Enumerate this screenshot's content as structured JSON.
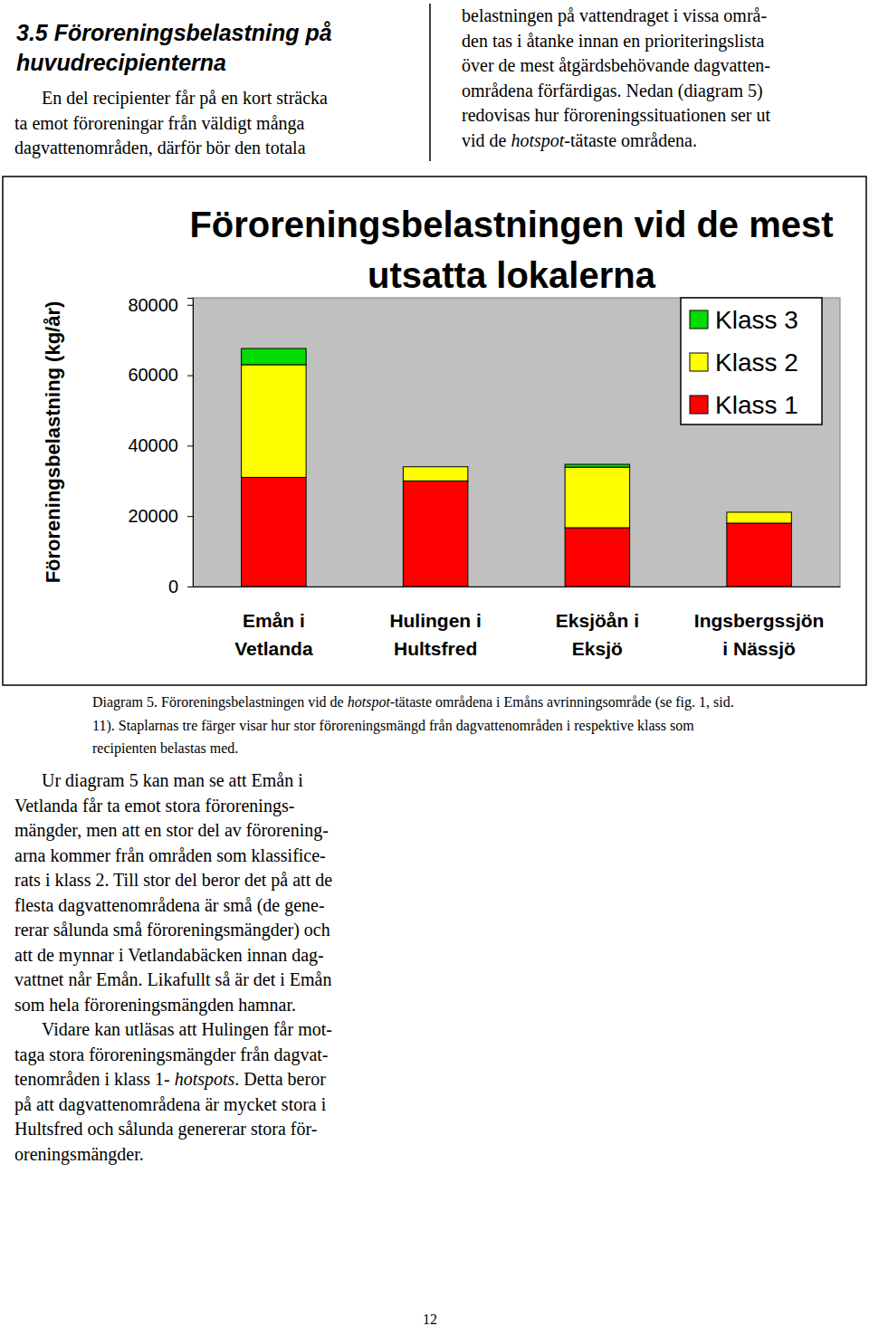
{
  "heading": [
    "3.5 Föroreningsbelastning på",
    "huvudrecipienterna"
  ],
  "intro": {
    "left": [
      "En del recipienter får på en kort sträcka",
      "ta emot föroreningar från väldigt många",
      "dagvattenområden, därför bör den totala"
    ],
    "right": [
      "belastningen på vattendraget i vissa områ-",
      "den tas i åtanke innan en prioriteringslista",
      "över de mest åtgärdsbehövande dagvatten-",
      "områdena förfärdigas. Nedan (diagram 5)",
      "redovisas hur föroreningssituationen ser ut",
      [
        "vid de ",
        "hotspot",
        "-tätaste områdena."
      ]
    ]
  },
  "chart_data": {
    "type": "bar",
    "stacked": true,
    "title": "Föroreningsbelastningen vid de mest utsatta lokalerna",
    "y_label": "Föroreningsbelastning (kg/år)",
    "categories": [
      "Emån i Vetlanda",
      "Hulingen i Hultsfred",
      "Eksjöån i Eksjö",
      "Ingsbergssjön i Nässjö"
    ],
    "series": [
      {
        "name": "Klass 1",
        "color": "#ff0000",
        "values": [
          31000,
          30000,
          16700,
          18000
        ]
      },
      {
        "name": "Klass 2",
        "color": "#ffff00",
        "values": [
          32000,
          4000,
          17200,
          3100
        ]
      },
      {
        "name": "Klass 3",
        "color": "#00dd00",
        "values": [
          4600,
          0,
          800,
          0
        ]
      }
    ],
    "ylim": [
      0,
      82000
    ],
    "yticks": [
      0,
      20000,
      40000,
      60000,
      80000
    ],
    "grid": false,
    "legend": "top-right"
  },
  "caption": [
    [
      "Diagram 5. Föroreningsbelastningen vid de ",
      "hotspot",
      "-tätaste områdena i Emåns avrinningsområde (se fig. 1, sid."
    ],
    "11). Staplarnas tre färger visar hur stor föroreningsmängd från dagvattenområden i respektive klass som",
    "recipienten belastas med."
  ],
  "body": [
    [
      "Ur diagram 5 kan man se att Emån i",
      "Vetlanda får ta emot stora förorenings-",
      "mängder, men att en stor del av förorening-",
      "arna kommer från områden som klassifice-",
      "rats i klass 2. Till stor del beror det på att de",
      "flesta dagvattenområdena är små (de gene-",
      "rerar sålunda små föroreningsmängder) och",
      "att de mynnar i Vetlandabäcken innan dag-",
      "vattnet når Emån. Likafullt så är det i Emån",
      "som hela föroreningsmängden hamnar."
    ],
    [
      "Vidare kan utläsas att Hulingen får mot-",
      "taga stora föroreningsmängder från dagvat-",
      [
        "tenområden i klass 1- ",
        "hotspots",
        ". Detta beror"
      ],
      "på att dagvattenområdena är mycket stora i",
      "Hultsfred och sålunda genererar stora för-",
      "oreningsmängder."
    ]
  ],
  "page_number": "12"
}
